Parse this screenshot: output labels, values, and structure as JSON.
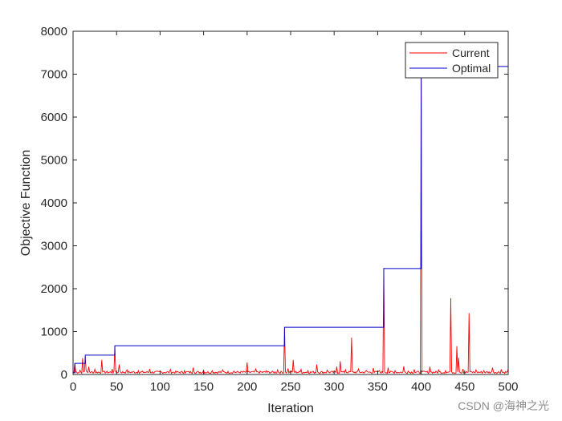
{
  "chart_data": {
    "type": "line",
    "title": "",
    "xlabel": "Iteration",
    "ylabel": "Objective Function",
    "xlim": [
      0,
      500
    ],
    "ylim": [
      0,
      8000
    ],
    "xticks": [
      0,
      50,
      100,
      150,
      200,
      250,
      300,
      350,
      400,
      450,
      500
    ],
    "yticks": [
      0,
      1000,
      2000,
      3000,
      4000,
      5000,
      6000,
      7000,
      8000
    ],
    "grid": false,
    "legend": {
      "position": "top-right",
      "entries": [
        "Current",
        "Optimal"
      ]
    },
    "series": [
      {
        "name": "Current",
        "color": "#ff0000",
        "baseline": 50,
        "points": [
          {
            "x": 0,
            "y": 40
          },
          {
            "x": 2,
            "y": 260
          },
          {
            "x": 4,
            "y": 60
          },
          {
            "x": 8,
            "y": 100
          },
          {
            "x": 11,
            "y": 380
          },
          {
            "x": 12,
            "y": 60
          },
          {
            "x": 14,
            "y": 420
          },
          {
            "x": 15,
            "y": 90
          },
          {
            "x": 18,
            "y": 180
          },
          {
            "x": 19,
            "y": 60
          },
          {
            "x": 25,
            "y": 120
          },
          {
            "x": 33,
            "y": 340
          },
          {
            "x": 34,
            "y": 60
          },
          {
            "x": 45,
            "y": 130
          },
          {
            "x": 48,
            "y": 660
          },
          {
            "x": 49,
            "y": 60
          },
          {
            "x": 53,
            "y": 230
          },
          {
            "x": 54,
            "y": 70
          },
          {
            "x": 62,
            "y": 110
          },
          {
            "x": 75,
            "y": 90
          },
          {
            "x": 88,
            "y": 130
          },
          {
            "x": 100,
            "y": 80
          },
          {
            "x": 112,
            "y": 120
          },
          {
            "x": 128,
            "y": 90
          },
          {
            "x": 138,
            "y": 160
          },
          {
            "x": 139,
            "y": 60
          },
          {
            "x": 150,
            "y": 100
          },
          {
            "x": 160,
            "y": 90
          },
          {
            "x": 172,
            "y": 110
          },
          {
            "x": 185,
            "y": 80
          },
          {
            "x": 200,
            "y": 280
          },
          {
            "x": 201,
            "y": 60
          },
          {
            "x": 210,
            "y": 130
          },
          {
            "x": 222,
            "y": 90
          },
          {
            "x": 235,
            "y": 110
          },
          {
            "x": 243,
            "y": 1100
          },
          {
            "x": 244,
            "y": 60
          },
          {
            "x": 247,
            "y": 140
          },
          {
            "x": 253,
            "y": 340
          },
          {
            "x": 254,
            "y": 60
          },
          {
            "x": 262,
            "y": 120
          },
          {
            "x": 270,
            "y": 90
          },
          {
            "x": 280,
            "y": 230
          },
          {
            "x": 281,
            "y": 60
          },
          {
            "x": 292,
            "y": 100
          },
          {
            "x": 303,
            "y": 180
          },
          {
            "x": 307,
            "y": 310
          },
          {
            "x": 308,
            "y": 60
          },
          {
            "x": 313,
            "y": 110
          },
          {
            "x": 320,
            "y": 860
          },
          {
            "x": 321,
            "y": 60
          },
          {
            "x": 328,
            "y": 130
          },
          {
            "x": 337,
            "y": 90
          },
          {
            "x": 345,
            "y": 150
          },
          {
            "x": 352,
            "y": 90
          },
          {
            "x": 357,
            "y": 2480
          },
          {
            "x": 358,
            "y": 60
          },
          {
            "x": 362,
            "y": 160
          },
          {
            "x": 370,
            "y": 90
          },
          {
            "x": 380,
            "y": 190
          },
          {
            "x": 385,
            "y": 80
          },
          {
            "x": 392,
            "y": 120
          },
          {
            "x": 400,
            "y": 7180
          },
          {
            "x": 401,
            "y": 60
          },
          {
            "x": 410,
            "y": 180
          },
          {
            "x": 411,
            "y": 60
          },
          {
            "x": 420,
            "y": 110
          },
          {
            "x": 428,
            "y": 90
          },
          {
            "x": 434,
            "y": 1780
          },
          {
            "x": 435,
            "y": 60
          },
          {
            "x": 441,
            "y": 660
          },
          {
            "x": 442,
            "y": 60
          },
          {
            "x": 443,
            "y": 390
          },
          {
            "x": 444,
            "y": 60
          },
          {
            "x": 448,
            "y": 130
          },
          {
            "x": 455,
            "y": 1430
          },
          {
            "x": 456,
            "y": 60
          },
          {
            "x": 463,
            "y": 110
          },
          {
            "x": 472,
            "y": 90
          },
          {
            "x": 482,
            "y": 160
          },
          {
            "x": 483,
            "y": 60
          },
          {
            "x": 492,
            "y": 120
          },
          {
            "x": 500,
            "y": 130
          }
        ]
      },
      {
        "name": "Optimal",
        "color": "#0000cc",
        "steps": [
          {
            "x": 0,
            "y": 40
          },
          {
            "x": 2,
            "y": 260
          },
          {
            "x": 14,
            "y": 450
          },
          {
            "x": 48,
            "y": 670
          },
          {
            "x": 243,
            "y": 1100
          },
          {
            "x": 357,
            "y": 2470
          },
          {
            "x": 400,
            "y": 7180
          },
          {
            "x": 500,
            "y": 7180
          }
        ]
      }
    ]
  },
  "watermark": "CSDN @海神之光"
}
